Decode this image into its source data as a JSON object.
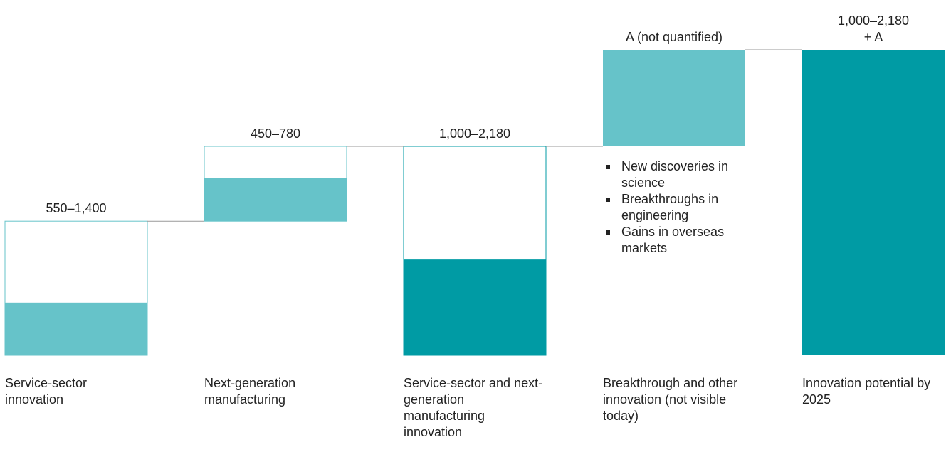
{
  "chart_data": {
    "type": "waterfall",
    "categories": [
      "Service-sector innovation",
      "Next-generation manufacturing",
      "Service-sector and next-generation manufacturing innovation",
      "Breakthrough and other innovation (not visible today)",
      "Innovation potential by 2025"
    ],
    "kinds": [
      "step",
      "step",
      "subtotal",
      "unquantified",
      "total"
    ],
    "low": [
      550,
      450,
      1000,
      null,
      null
    ],
    "high": [
      1400,
      780,
      2180,
      null,
      null
    ],
    "value_labels": [
      [
        "550–1,400"
      ],
      [
        "450–780"
      ],
      [
        "1,000–2,180"
      ],
      [
        "A (not quantified)"
      ],
      [
        "1,000–2,180",
        "+ A"
      ]
    ],
    "colors": [
      "#66c3c9",
      "#66c3c9",
      "#009ba4",
      "#66c3c9",
      "#009ba4"
    ],
    "annotations": [
      "New discoveries in science",
      "Breakthroughs in engineering",
      "Gains in overseas markets"
    ]
  }
}
